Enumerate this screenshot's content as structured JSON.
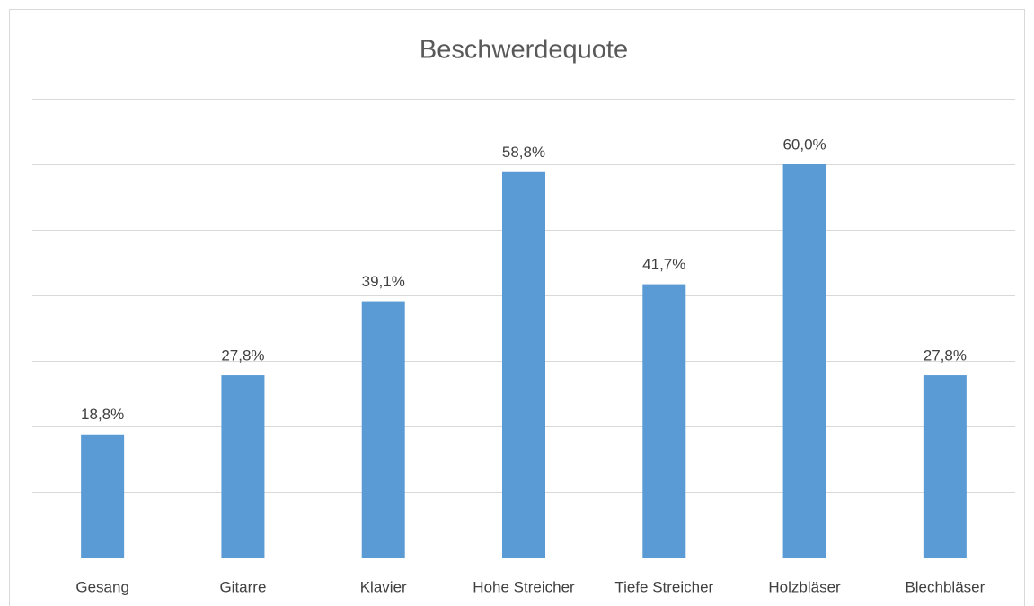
{
  "chart_data": {
    "type": "bar",
    "title": "Beschwerdequote",
    "categories": [
      "Gesang",
      "Gitarre",
      "Klavier",
      "Hohe Streicher",
      "Tiefe Streicher",
      "Holzbläser",
      "Blechbläser"
    ],
    "values": [
      18.8,
      27.8,
      39.1,
      58.8,
      41.7,
      60.0,
      27.8
    ],
    "value_labels": [
      "18,8%",
      "27,8%",
      "39,1%",
      "58,8%",
      "41,7%",
      "60,0%",
      "27,8%"
    ],
    "color": "#5b9bd5",
    "ylim": [
      0,
      70
    ],
    "yticks": [
      0,
      10,
      20,
      30,
      40,
      50,
      60,
      70
    ],
    "grid": true
  }
}
